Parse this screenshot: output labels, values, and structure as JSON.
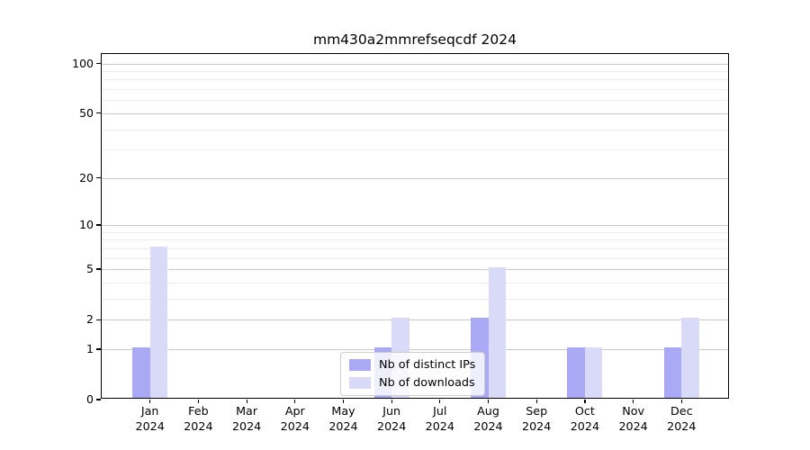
{
  "chart_data": {
    "type": "bar",
    "title": "mm430a2mmrefseqcdf 2024",
    "categories": [
      "Jan 2024",
      "Feb 2024",
      "Mar 2024",
      "Apr 2024",
      "May 2024",
      "Jun 2024",
      "Jul 2024",
      "Aug 2024",
      "Sep 2024",
      "Oct 2024",
      "Nov 2024",
      "Dec 2024"
    ],
    "series": [
      {
        "name": "Nb of distinct IPs",
        "color": "#a9a9f5",
        "values": [
          1,
          0,
          0,
          0,
          0,
          1,
          0,
          2,
          0,
          1,
          0,
          1
        ]
      },
      {
        "name": "Nb of downloads",
        "color": "#d9daf8",
        "values": [
          7,
          0,
          0,
          0,
          0,
          2,
          0,
          5,
          0,
          1,
          0,
          2
        ]
      }
    ],
    "yscale": "log1p",
    "ylim": [
      0,
      114
    ],
    "yticks": [
      0,
      1,
      2,
      5,
      10,
      20,
      50,
      100
    ],
    "yticks_minor": [
      3,
      4,
      6,
      7,
      8,
      9,
      30,
      40,
      60,
      70,
      80,
      90
    ],
    "xlabel": "",
    "ylabel": "",
    "grid": "horizontal",
    "legend_position": "inside-bottom-center",
    "colors": {
      "grid_major": "#c9c9c9",
      "grid_minor": "#ececec",
      "axis": "#000000",
      "text": "#000000",
      "background": "#ffffff"
    }
  }
}
